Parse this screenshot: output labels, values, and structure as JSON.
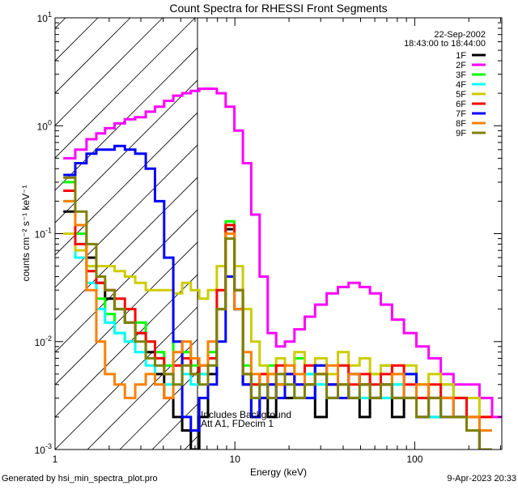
{
  "chart_data": {
    "type": "line",
    "title": "Count Spectra for RHESSI Front Segments",
    "xlabel": "Energy (keV)",
    "ylabel": "counts cm⁻² s⁻¹ keV⁻¹",
    "xscale": "log",
    "yscale": "log",
    "xlim": [
      1,
      305
    ],
    "ylim": [
      0.001,
      10
    ],
    "x_ticks": [
      {
        "value": 1,
        "label": "1"
      },
      {
        "value": 10,
        "label": "10"
      },
      {
        "value": 100,
        "label": "100"
      }
    ],
    "y_ticks": [
      {
        "value": 10,
        "base": "10",
        "exp": "1"
      },
      {
        "value": 1,
        "base": "10",
        "exp": "0"
      },
      {
        "value": 0.1,
        "base": "10",
        "exp": "-1"
      },
      {
        "value": 0.01,
        "base": "10",
        "exp": "-2"
      },
      {
        "value": 0.001,
        "base": "10",
        "exp": "-3"
      }
    ],
    "hatched_region_xmax": 6.2,
    "date": "22-Sep-2002",
    "time_range": "18:43:00 to 18:44:00",
    "annotations": [
      "Includes Background",
      "Att A1, FDecim 1"
    ],
    "legend_position": "top-right",
    "energy": [
      1.2,
      1.4,
      1.6,
      1.8,
      2.0,
      2.3,
      2.6,
      3.0,
      3.4,
      3.8,
      4.3,
      4.8,
      5.4,
      6,
      6.7,
      7.5,
      8.4,
      9.4,
      10.5,
      11.7,
      13,
      14.5,
      16,
      18,
      20,
      23,
      26,
      30,
      35,
      40,
      46,
      53,
      60,
      70,
      80,
      95,
      110,
      130,
      150,
      180,
      210,
      250,
      290
    ],
    "series": [
      {
        "name": "1F",
        "color": "#000000",
        "values": [
          0.16,
          0.1,
          0.06,
          0.035,
          0.025,
          0.02,
          0.015,
          0.012,
          0.008,
          0.005,
          0.003,
          0.002,
          0.0015,
          0.001,
          0.002,
          0.005,
          0.02,
          0.11,
          0.02,
          0.004,
          0.002,
          0.003,
          0.002,
          0.004,
          0.003,
          0.003,
          0.004,
          0.002,
          0.003,
          0.004,
          0.003,
          0.002,
          0.003,
          0.004,
          0.002,
          0.003,
          0.002,
          0.002,
          0.003,
          0.002,
          0.0015,
          0.001,
          null
        ]
      },
      {
        "name": "2F",
        "color": "#ff00ff",
        "values": [
          0.5,
          0.6,
          0.75,
          0.85,
          0.95,
          1.05,
          1.15,
          1.2,
          1.35,
          1.5,
          1.7,
          1.9,
          2.0,
          2.1,
          2.2,
          2.2,
          2.0,
          1.5,
          0.9,
          0.45,
          0.15,
          0.04,
          0.012,
          0.009,
          0.01,
          0.013,
          0.017,
          0.022,
          0.028,
          0.032,
          0.035,
          0.032,
          0.028,
          0.022,
          0.016,
          0.012,
          0.009,
          0.007,
          0.005,
          0.004,
          0.004,
          0.003,
          0.002
        ]
      },
      {
        "name": "3F",
        "color": "#00ff00",
        "values": [
          0.3,
          0.1,
          0.05,
          0.025,
          0.018,
          0.012,
          0.01,
          0.015,
          0.01,
          0.008,
          0.006,
          0.01,
          0.008,
          0.006,
          0.005,
          0.008,
          0.02,
          0.13,
          0.03,
          0.006,
          0.004,
          0.005,
          0.006,
          0.004,
          0.005,
          0.007,
          0.005,
          0.006,
          0.004,
          0.006,
          0.005,
          0.004,
          0.005,
          0.006,
          0.004,
          0.005,
          0.004,
          0.003,
          0.004,
          0.003,
          0.002,
          0.002,
          null
        ]
      },
      {
        "name": "4F",
        "color": "#00ffff",
        "values": [
          0.2,
          0.06,
          0.035,
          0.02,
          0.015,
          0.012,
          0.01,
          0.008,
          0.006,
          0.004,
          0.004,
          0.006,
          0.005,
          0.004,
          0.005,
          0.006,
          0.02,
          0.1,
          0.02,
          0.005,
          0.003,
          0.004,
          0.003,
          0.005,
          0.004,
          0.003,
          0.005,
          0.004,
          0.003,
          0.004,
          0.005,
          0.003,
          0.004,
          0.003,
          0.004,
          0.003,
          0.003,
          0.002,
          0.003,
          0.002,
          0.002,
          0.0015,
          null
        ]
      },
      {
        "name": "5F",
        "color": "#cccc00",
        "values": [
          0.1,
          0.07,
          0.05,
          0.05,
          0.05,
          0.045,
          0.04,
          0.035,
          0.03,
          0.03,
          0.03,
          0.028,
          0.035,
          0.03,
          0.025,
          0.03,
          0.05,
          0.12,
          0.05,
          0.02,
          0.01,
          0.006,
          0.005,
          0.007,
          0.006,
          0.008,
          0.006,
          0.007,
          0.005,
          0.008,
          0.006,
          0.007,
          0.005,
          0.006,
          0.005,
          0.006,
          0.004,
          0.005,
          0.004,
          0.003,
          0.003,
          0.002,
          null
        ]
      },
      {
        "name": "6F",
        "color": "#ff0000",
        "values": [
          0.25,
          0.08,
          0.045,
          0.035,
          0.03,
          0.025,
          0.02,
          0.012,
          0.01,
          0.007,
          0.005,
          0.006,
          0.007,
          0.005,
          0.006,
          0.007,
          0.03,
          0.12,
          0.03,
          0.005,
          0.004,
          0.005,
          0.004,
          0.006,
          0.005,
          0.004,
          0.006,
          0.005,
          0.004,
          0.006,
          0.004,
          0.005,
          0.004,
          0.005,
          0.006,
          0.004,
          0.003,
          0.004,
          0.003,
          0.003,
          0.002,
          0.002,
          null
        ]
      },
      {
        "name": "7F",
        "color": "#0000ff",
        "values": [
          0.35,
          0.45,
          0.55,
          0.6,
          0.6,
          0.65,
          0.6,
          0.55,
          0.4,
          0.2,
          0.06,
          0.01,
          0.002,
          0.0015,
          0.003,
          0.004,
          0.01,
          0.04,
          0.02,
          0.004,
          0.002,
          0.003,
          0.004,
          0.003,
          0.005,
          0.004,
          0.003,
          0.006,
          0.004,
          0.003,
          0.005,
          0.004,
          0.003,
          0.004,
          0.003,
          0.005,
          0.002,
          0.003,
          0.002,
          0.002,
          0.0015,
          0.001,
          null
        ]
      },
      {
        "name": "8F",
        "color": "#ff8000",
        "values": [
          0.2,
          0.12,
          0.03,
          0.01,
          0.005,
          0.004,
          0.003,
          0.004,
          0.005,
          0.004,
          0.003,
          0.008,
          0.01,
          0.007,
          0.006,
          0.01,
          0.02,
          0.1,
          0.02,
          0.008,
          0.005,
          0.004,
          0.005,
          0.004,
          0.006,
          0.005,
          0.004,
          0.005,
          0.006,
          0.004,
          0.005,
          0.004,
          0.003,
          0.004,
          0.005,
          0.003,
          0.004,
          0.003,
          0.003,
          0.002,
          0.002,
          0.0015,
          null
        ]
      },
      {
        "name": "9F",
        "color": "#808000",
        "values": [
          0.33,
          0.16,
          0.08,
          0.04,
          0.03,
          0.02,
          0.015,
          0.01,
          0.007,
          0.006,
          0.005,
          0.004,
          0.006,
          0.005,
          0.004,
          0.006,
          0.02,
          0.09,
          0.03,
          0.005,
          0.003,
          0.004,
          0.003,
          0.005,
          0.004,
          0.003,
          0.004,
          0.005,
          0.003,
          0.004,
          0.003,
          0.004,
          0.003,
          0.004,
          0.003,
          0.003,
          0.002,
          0.003,
          0.002,
          0.002,
          0.0015,
          0.001,
          null
        ]
      }
    ]
  },
  "footer": {
    "generated_by": "Generated by hsi_min_spectra_plot.pro",
    "timestamp": "9-Apr-2023 20:33"
  }
}
